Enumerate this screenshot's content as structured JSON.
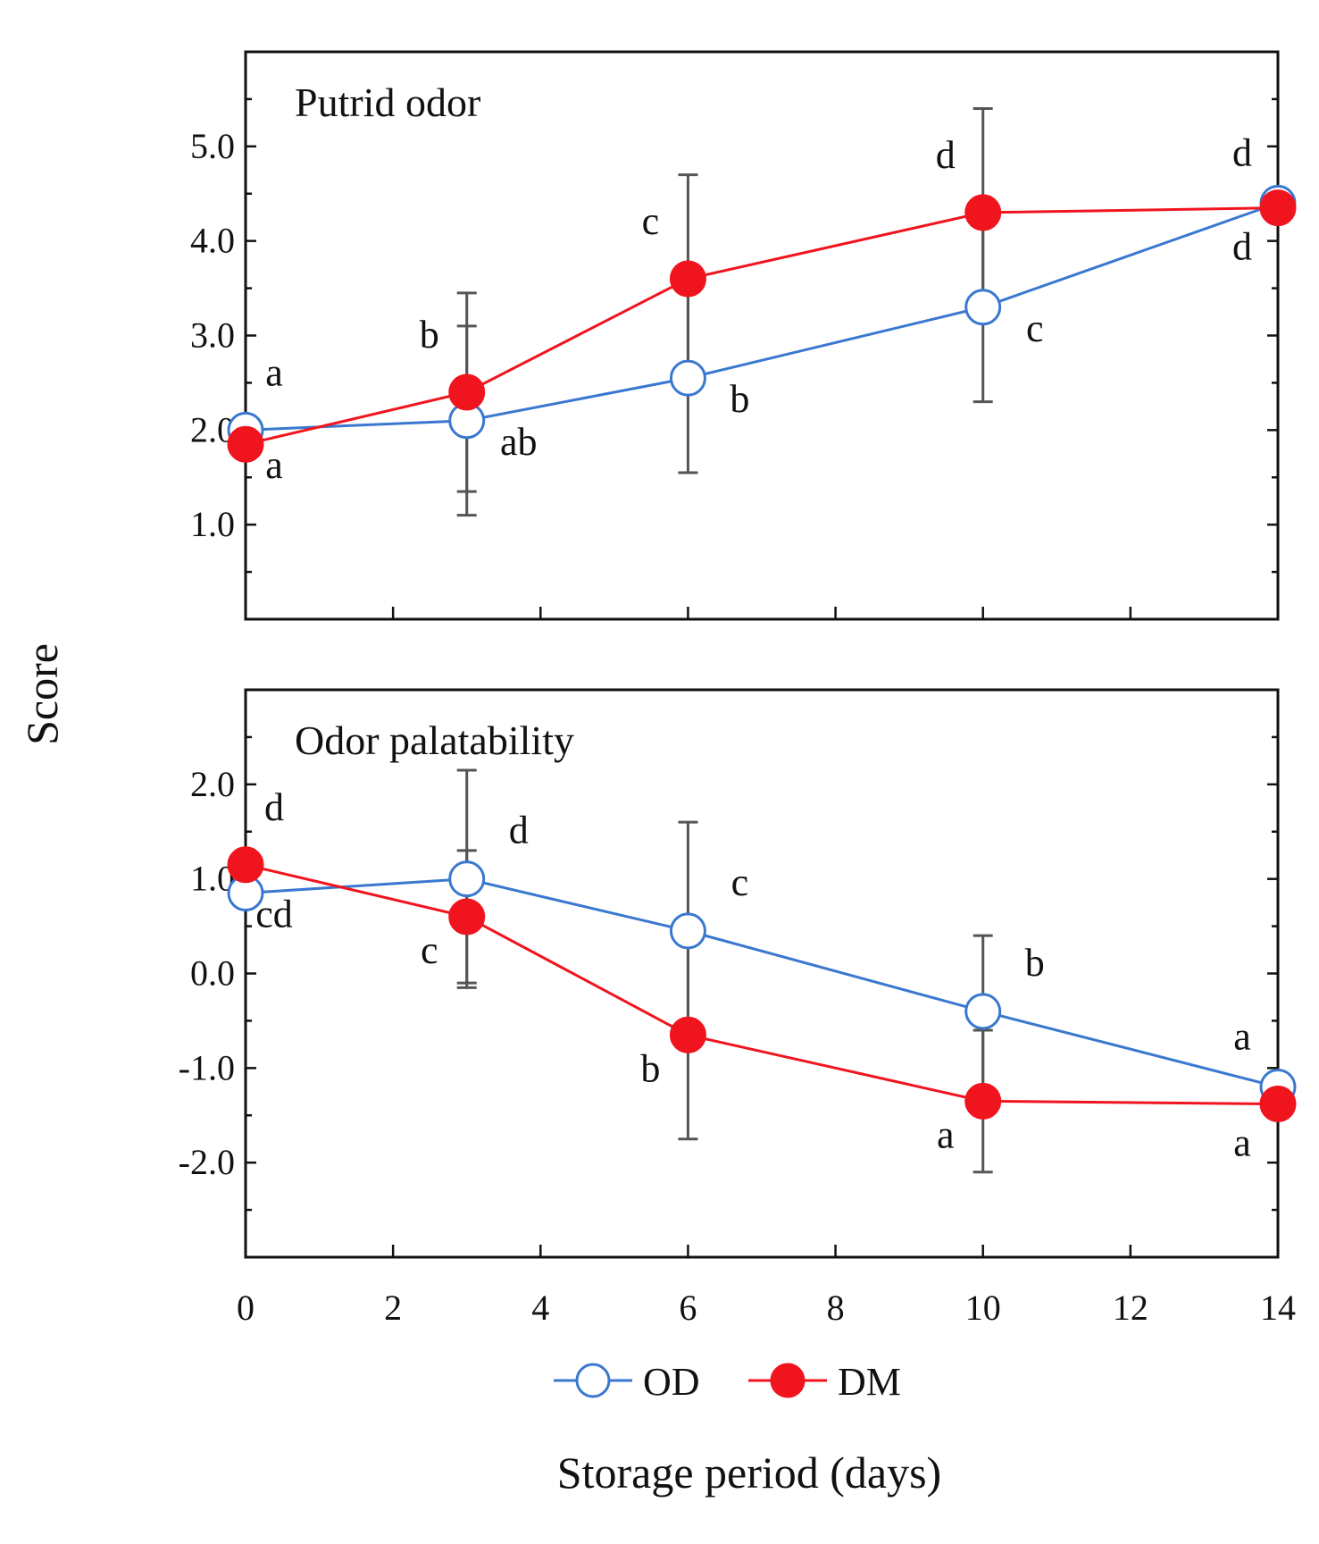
{
  "chart_data": {
    "type": "line",
    "shared_xlabel": "Storage period (days)",
    "shared_ylabel": "Score",
    "x": [
      0,
      3,
      6,
      10,
      14
    ],
    "x_ticks": [
      "0",
      "2",
      "4",
      "6",
      "8",
      "10",
      "12",
      "14"
    ],
    "xlim": [
      0,
      14
    ],
    "legend": {
      "placement": "bottom-center",
      "entries": [
        {
          "label": "OD",
          "marker": "open-circle",
          "color": "#3a78d0"
        },
        {
          "label": "DM",
          "marker": "filled-circle",
          "color": "#f0141e"
        }
      ]
    },
    "panels": [
      {
        "title": "Putrid odor",
        "ylim": [
          0,
          6
        ],
        "y_ticks": [
          "1.0",
          "2.0",
          "3.0",
          "4.0",
          "5.0"
        ],
        "series": [
          {
            "name": "OD",
            "color": "#3a78d0",
            "values": [
              2.0,
              2.1,
              2.55,
              3.3,
              4.4
            ],
            "error": [
              0,
              1.0,
              1.0,
              1.0,
              0
            ],
            "letters": [
              "a",
              "ab",
              "b",
              "c",
              "d"
            ]
          },
          {
            "name": "DM",
            "color": "#f0141e",
            "values": [
              1.85,
              2.4,
              3.6,
              4.3,
              4.35
            ],
            "error": [
              0,
              1.05,
              1.1,
              1.1,
              0
            ],
            "letters": [
              "a",
              "b",
              "c",
              "d",
              "d"
            ]
          }
        ]
      },
      {
        "title": "Odor palatability",
        "ylim": [
          -3,
          3
        ],
        "y_ticks": [
          "-2.0",
          "-1.0",
          "0.0",
          "1.0",
          "2.0"
        ],
        "series": [
          {
            "name": "OD",
            "color": "#3a78d0",
            "values": [
              0.85,
              1.0,
              0.45,
              -0.4,
              -1.2
            ],
            "error": [
              0,
              1.15,
              1.15,
              0.8,
              0
            ],
            "letters": [
              "cd",
              "d",
              "c",
              "b",
              "a"
            ]
          },
          {
            "name": "DM",
            "color": "#f0141e",
            "values": [
              1.15,
              0.6,
              -0.65,
              -1.35,
              -1.38
            ],
            "error": [
              0,
              0.7,
              1.1,
              0.75,
              0
            ],
            "letters": [
              "d",
              "c",
              "b",
              "a",
              "a"
            ]
          }
        ]
      }
    ]
  }
}
